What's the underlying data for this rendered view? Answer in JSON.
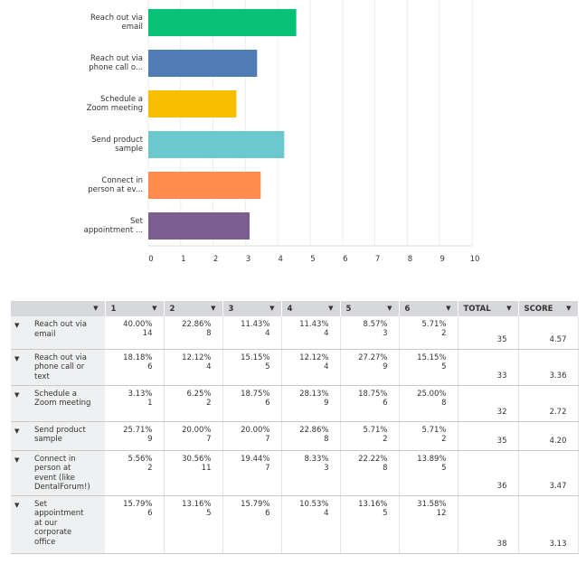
{
  "chart_data": {
    "type": "bar",
    "orientation": "horizontal",
    "categories": [
      "Reach out via email",
      "Reach out via phone call o...",
      "Schedule a Zoom meeting",
      "Send product sample",
      "Connect in person at ev...",
      "Set appointment ..."
    ],
    "category_lines": [
      [
        "Reach out via",
        "email"
      ],
      [
        "Reach out via",
        "phone call o..."
      ],
      [
        "Schedule a",
        "Zoom meeting"
      ],
      [
        "Send product",
        "sample"
      ],
      [
        "Connect in",
        "person at ev..."
      ],
      [
        "Set",
        "appointment ..."
      ]
    ],
    "values": [
      4.57,
      3.36,
      2.72,
      4.2,
      3.47,
      3.13
    ],
    "colors": [
      "#08c177",
      "#507cb6",
      "#f9be00",
      "#6bc8cd",
      "#ff8b4f",
      "#7d5e91"
    ],
    "xlim": [
      0,
      10
    ],
    "xticks": [
      "0",
      "1",
      "2",
      "3",
      "4",
      "5",
      "6",
      "7",
      "8",
      "9",
      "10"
    ],
    "grid": true
  },
  "table": {
    "headers": [
      "1",
      "2",
      "3",
      "4",
      "5",
      "6",
      "TOTAL",
      "SCORE"
    ],
    "caret": "▼",
    "rows": [
      {
        "label": "Reach out via email",
        "cells": [
          [
            "40.00%",
            "14"
          ],
          [
            "22.86%",
            "8"
          ],
          [
            "11.43%",
            "4"
          ],
          [
            "11.43%",
            "4"
          ],
          [
            "8.57%",
            "3"
          ],
          [
            "5.71%",
            "2"
          ]
        ],
        "total": "35",
        "score": "4.57"
      },
      {
        "label": "Reach out via phone call or text",
        "cells": [
          [
            "18.18%",
            "6"
          ],
          [
            "12.12%",
            "4"
          ],
          [
            "15.15%",
            "5"
          ],
          [
            "12.12%",
            "4"
          ],
          [
            "27.27%",
            "9"
          ],
          [
            "15.15%",
            "5"
          ]
        ],
        "total": "33",
        "score": "3.36"
      },
      {
        "label": "Schedule a Zoom meeting",
        "cells": [
          [
            "3.13%",
            "1"
          ],
          [
            "6.25%",
            "2"
          ],
          [
            "18.75%",
            "6"
          ],
          [
            "28.13%",
            "9"
          ],
          [
            "18.75%",
            "6"
          ],
          [
            "25.00%",
            "8"
          ]
        ],
        "total": "32",
        "score": "2.72"
      },
      {
        "label": "Send product sample",
        "cells": [
          [
            "25.71%",
            "9"
          ],
          [
            "20.00%",
            "7"
          ],
          [
            "20.00%",
            "7"
          ],
          [
            "22.86%",
            "8"
          ],
          [
            "5.71%",
            "2"
          ],
          [
            "5.71%",
            "2"
          ]
        ],
        "total": "35",
        "score": "4.20"
      },
      {
        "label": "Connect in person at event (like DentalForum!)",
        "cells": [
          [
            "5.56%",
            "2"
          ],
          [
            "30.56%",
            "11"
          ],
          [
            "19.44%",
            "7"
          ],
          [
            "8.33%",
            "3"
          ],
          [
            "22.22%",
            "8"
          ],
          [
            "13.89%",
            "5"
          ]
        ],
        "total": "36",
        "score": "3.47"
      },
      {
        "label": "Set appointment at our corporate office",
        "cells": [
          [
            "15.79%",
            "6"
          ],
          [
            "13.16%",
            "5"
          ],
          [
            "15.79%",
            "6"
          ],
          [
            "10.53%",
            "4"
          ],
          [
            "13.16%",
            "5"
          ],
          [
            "31.58%",
            "12"
          ]
        ],
        "total": "38",
        "score": "3.13"
      }
    ]
  }
}
